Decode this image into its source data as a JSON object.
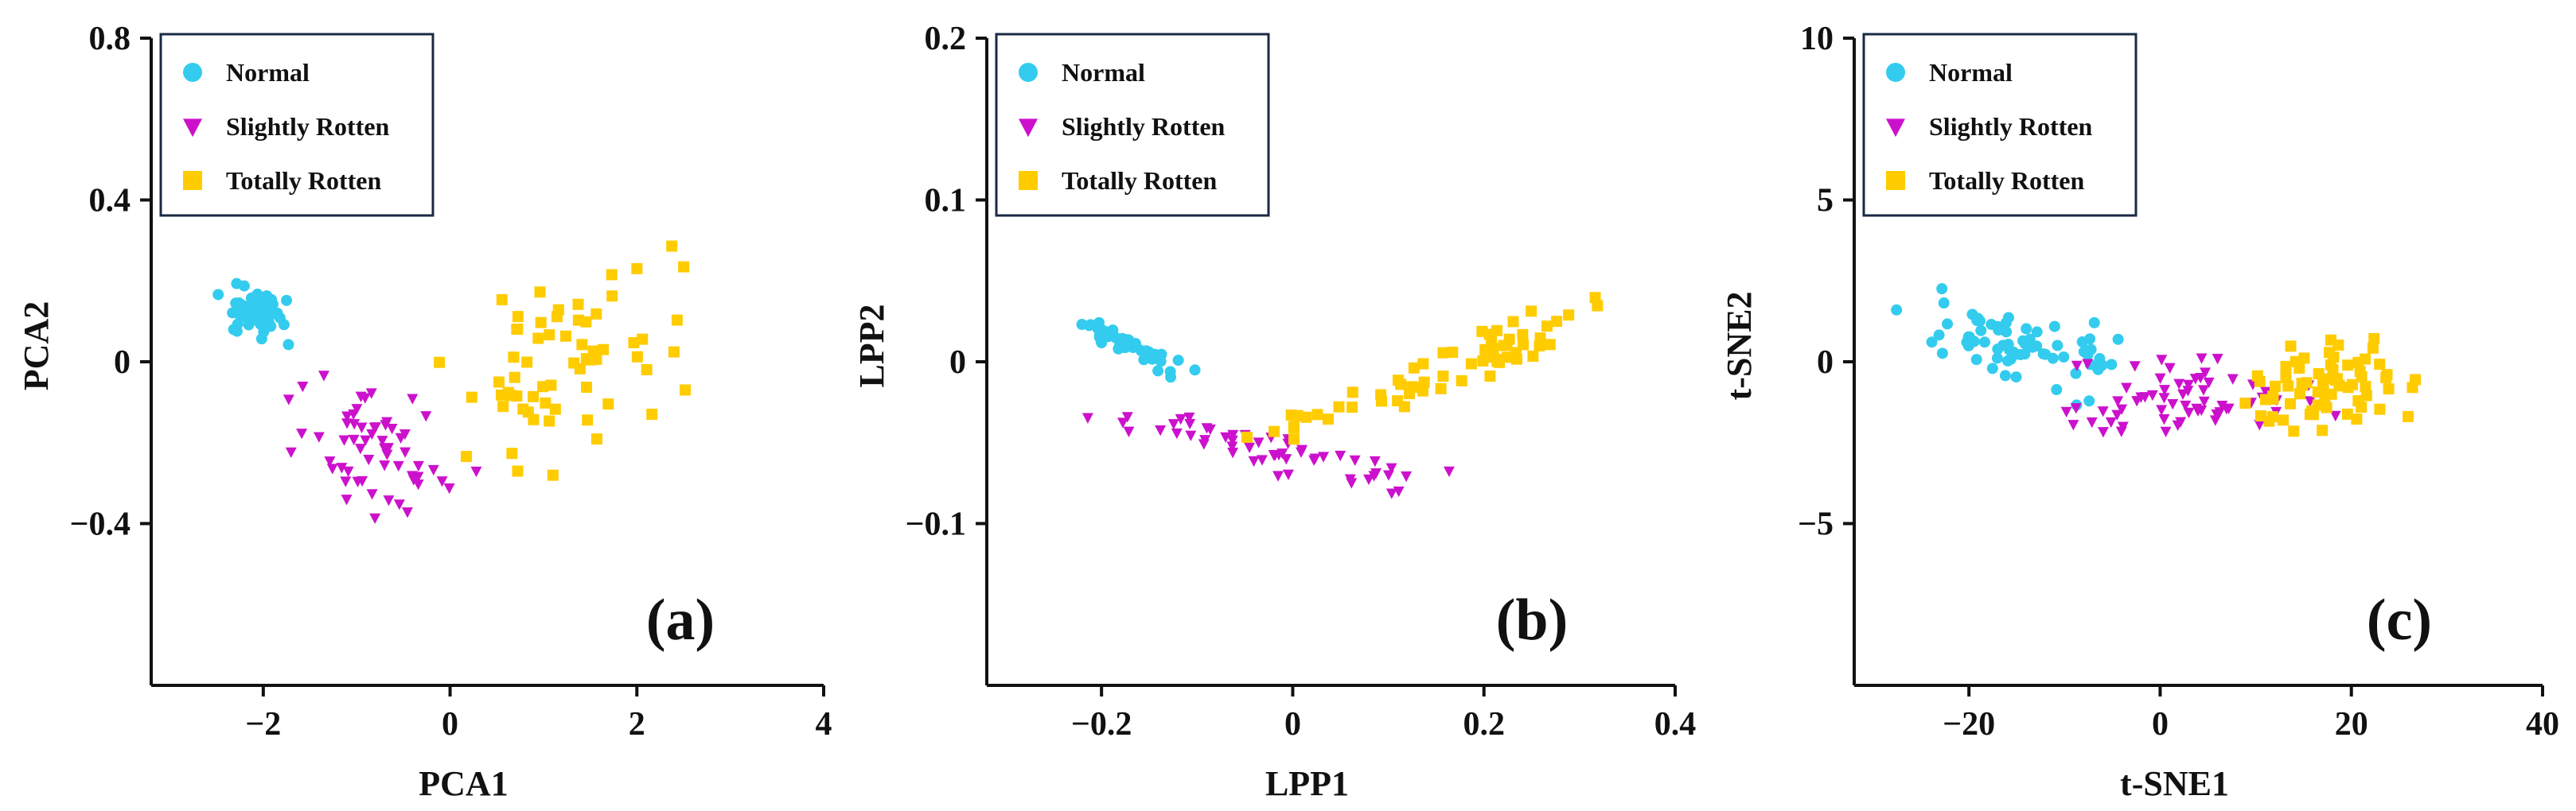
{
  "colors": {
    "normal": "#33ccee",
    "slightly": "#cc11cc",
    "totally": "#ffcc00",
    "axis": "#111111"
  },
  "legend_items": [
    "Normal",
    "Slightly Rotten",
    "Totally Rotten"
  ],
  "chart_data": [
    {
      "type": "scatter",
      "panel_label": "(a)",
      "xlabel": "PCA1",
      "ylabel": "PCA2",
      "xlim": [
        -3.2,
        4
      ],
      "ylim": [
        -0.8,
        0.8
      ],
      "xticks": [
        -2,
        0,
        2,
        4
      ],
      "xtick_labels": [
        "−2",
        "0",
        "2",
        "4"
      ],
      "yticks": [
        -0.4,
        0,
        0.4,
        0.8
      ],
      "ytick_labels": [
        "−0.4",
        "0",
        "0.4",
        "0.8"
      ],
      "legend_position": "top-left",
      "series": [
        {
          "name": "Normal",
          "marker": "circle",
          "center": [
            -2.1,
            0.12
          ],
          "spread": [
            0.35,
            0.05
          ],
          "n": 55,
          "trend": -0.22
        },
        {
          "name": "Slightly Rotten",
          "marker": "triangle-down",
          "center": [
            -0.8,
            -0.22
          ],
          "spread": [
            0.7,
            0.12
          ],
          "n": 60,
          "trend": -0.17
        },
        {
          "name": "Totally Rotten",
          "marker": "square",
          "center": [
            1.2,
            0.02
          ],
          "spread": [
            1.0,
            0.18
          ],
          "n": 65,
          "trend": 0.28
        }
      ]
    },
    {
      "type": "scatter",
      "panel_label": "(b)",
      "xlabel": "LPP1",
      "ylabel": "LPP2",
      "xlim": [
        -0.32,
        0.4
      ],
      "ylim": [
        -0.2,
        0.2
      ],
      "xticks": [
        -0.2,
        0,
        0.2,
        0.4
      ],
      "xtick_labels": [
        "−0.2",
        "0",
        "0.2",
        "0.4"
      ],
      "yticks": [
        -0.1,
        0,
        0.1,
        0.2
      ],
      "ytick_labels": [
        "−0.1",
        "0",
        "0.1",
        "0.2"
      ],
      "legend_position": "top-left",
      "series": [
        {
          "name": "Normal",
          "marker": "circle",
          "center": [
            -0.17,
            0.01
          ],
          "spread": [
            0.05,
            0.006
          ],
          "n": 45,
          "trend": -0.45
        },
        {
          "name": "Slightly Rotten",
          "marker": "triangle-down",
          "center": [
            -0.02,
            -0.055
          ],
          "spread": [
            0.13,
            0.012
          ],
          "n": 55,
          "trend": -0.22
        },
        {
          "name": "Totally Rotten",
          "marker": "square",
          "center": [
            0.16,
            -0.005
          ],
          "spread": [
            0.15,
            0.012
          ],
          "n": 65,
          "trend": 0.42
        }
      ]
    },
    {
      "type": "scatter",
      "panel_label": "(c)",
      "xlabel": "t-SNE1",
      "ylabel": "t-SNE2",
      "xlim": [
        -32,
        40
      ],
      "ylim": [
        -10,
        10
      ],
      "xticks": [
        -20,
        0,
        20,
        40
      ],
      "xtick_labels": [
        "−20",
        "0",
        "20",
        "40"
      ],
      "yticks": [
        -5,
        0,
        5,
        10
      ],
      "ytick_labels": [
        "−5",
        "0",
        "5",
        "10"
      ],
      "legend_position": "top-left",
      "series": [
        {
          "name": "Normal",
          "marker": "circle",
          "center": [
            -15,
            0.4
          ],
          "spread": [
            9,
            1.0
          ],
          "n": 70,
          "trend": -0.17
        },
        {
          "name": "Slightly Rotten",
          "marker": "triangle-down",
          "center": [
            1,
            -1.2
          ],
          "spread": [
            12,
            1.0
          ],
          "n": 65,
          "trend": 0.05
        },
        {
          "name": "Totally Rotten",
          "marker": "square",
          "center": [
            18,
            -0.8
          ],
          "spread": [
            8,
            1.2
          ],
          "n": 70,
          "trend": 0.1
        }
      ]
    }
  ]
}
